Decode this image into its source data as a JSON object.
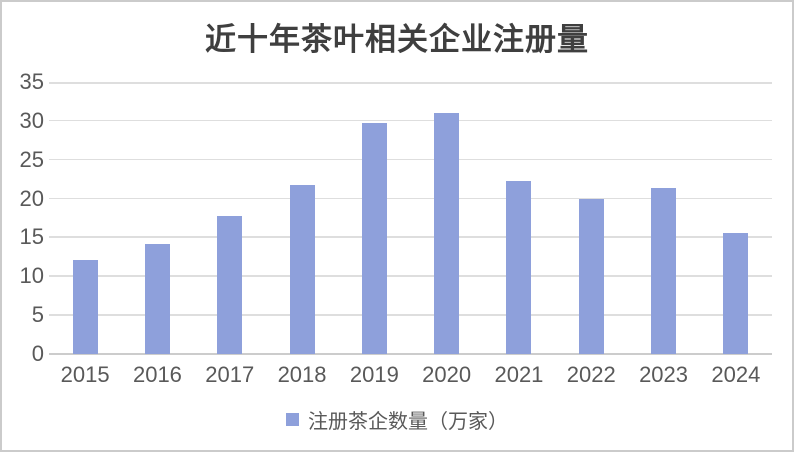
{
  "chart_data": {
    "type": "bar",
    "title": "近十年茶叶相关企业注册量",
    "categories": [
      "2015",
      "2016",
      "2017",
      "2018",
      "2019",
      "2020",
      "2021",
      "2022",
      "2023",
      "2024"
    ],
    "values": [
      12.1,
      14.1,
      17.8,
      21.8,
      29.7,
      31,
      22.2,
      20,
      21.4,
      15.6
    ],
    "series_name": "注册茶企数量（万家）",
    "legend": [
      "注册茶企数量（万家）"
    ],
    "legend_position": "bottom",
    "xlabel": "",
    "ylabel": "",
    "ylim": [
      0,
      35
    ],
    "yticks": [
      0,
      5,
      10,
      15,
      20,
      25,
      30,
      35
    ],
    "grid": true,
    "colors": {
      "bar": "#8EA0DB",
      "grid": "#DEDEDE",
      "baseline": "#CCCCCC",
      "frame": "#CBCBCB",
      "title_text": "#3F3F3F",
      "tick_text": "#595959"
    }
  }
}
